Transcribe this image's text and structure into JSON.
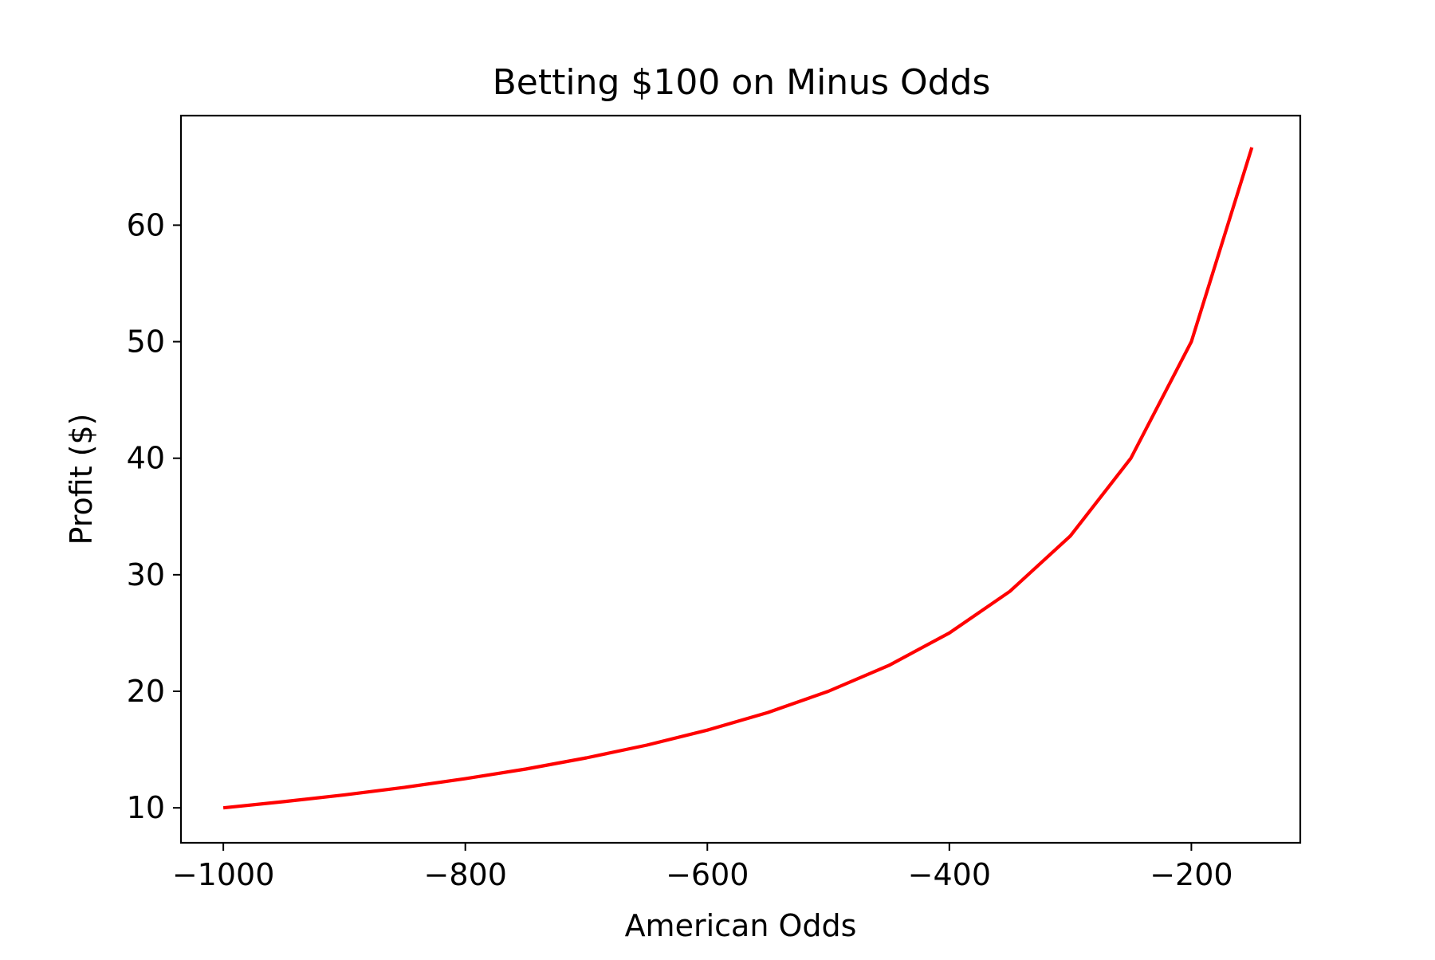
{
  "chart_data": {
    "type": "line",
    "title": "Betting $100 on Minus Odds",
    "xlabel": "American Odds",
    "ylabel": "Profit ($)",
    "xlim": [
      -1035,
      -110
    ],
    "ylim": [
      7,
      69.4
    ],
    "xticks": [
      -1000,
      -800,
      -600,
      -400,
      -200
    ],
    "xtick_labels": [
      "−1000",
      "−800",
      "−600",
      "−400",
      "−200"
    ],
    "yticks": [
      10,
      20,
      30,
      40,
      50,
      60
    ],
    "ytick_labels": [
      "10",
      "20",
      "30",
      "40",
      "50",
      "60"
    ],
    "grid": false,
    "series": [
      {
        "color": "#ff0000",
        "x": [
          -1000,
          -950,
          -900,
          -850,
          -800,
          -750,
          -700,
          -650,
          -600,
          -550,
          -500,
          -450,
          -400,
          -350,
          -300,
          -250,
          -200,
          -150
        ],
        "y": [
          10,
          10.53,
          11.11,
          11.76,
          12.5,
          13.33,
          14.29,
          15.38,
          16.67,
          18.18,
          20,
          22.22,
          25,
          28.57,
          33.33,
          40,
          50,
          66.67
        ]
      }
    ]
  }
}
